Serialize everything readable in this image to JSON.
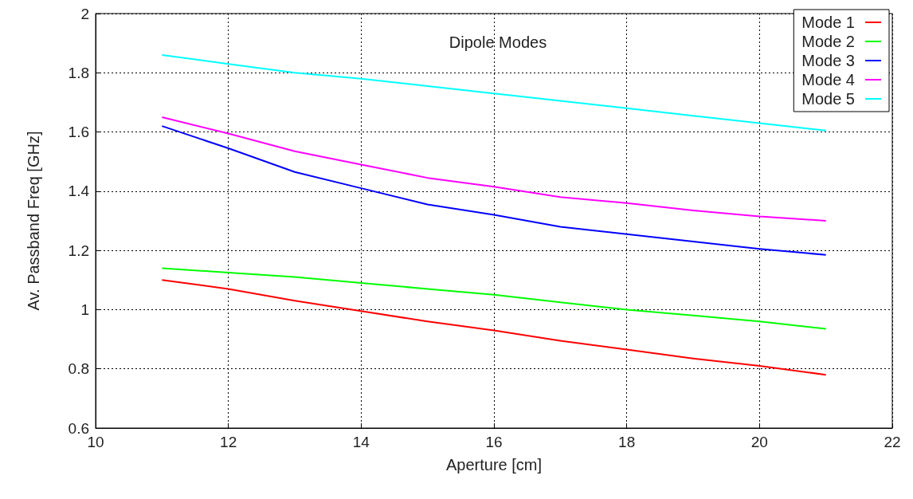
{
  "chart_data": {
    "type": "line",
    "title": "Dipole Modes",
    "xlabel": "Aperture [cm]",
    "ylabel": "Av. Passband Freq [GHz]",
    "x": [
      11,
      12,
      13,
      14,
      15,
      16,
      17,
      18,
      19,
      20,
      21
    ],
    "series": [
      {
        "name": "Mode 1",
        "color": "#ff0000",
        "values": [
          1.1,
          1.07,
          1.03,
          0.995,
          0.96,
          0.93,
          0.895,
          0.865,
          0.835,
          0.81,
          0.78
        ]
      },
      {
        "name": "Mode 2",
        "color": "#00ff00",
        "values": [
          1.14,
          1.125,
          1.11,
          1.09,
          1.07,
          1.05,
          1.025,
          1.0,
          0.98,
          0.96,
          0.935
        ]
      },
      {
        "name": "Mode 3",
        "color": "#0000ff",
        "values": [
          1.62,
          1.545,
          1.465,
          1.41,
          1.355,
          1.32,
          1.28,
          1.255,
          1.23,
          1.205,
          1.185
        ]
      },
      {
        "name": "Mode 4",
        "color": "#ff00ff",
        "values": [
          1.65,
          1.595,
          1.535,
          1.49,
          1.445,
          1.415,
          1.38,
          1.36,
          1.335,
          1.315,
          1.3
        ]
      },
      {
        "name": "Mode 5",
        "color": "#00ffff",
        "values": [
          1.86,
          1.83,
          1.8,
          1.78,
          1.755,
          1.73,
          1.705,
          1.68,
          1.655,
          1.63,
          1.605
        ]
      }
    ],
    "xlim": [
      10,
      22
    ],
    "xticks": [
      10,
      12,
      14,
      16,
      18,
      20,
      22
    ],
    "ylim": [
      0.6,
      2
    ],
    "yticks": [
      0.6,
      0.8,
      1,
      1.2,
      1.4,
      1.6,
      1.8,
      2
    ],
    "grid": true,
    "legend": "top right",
    "marker": "none",
    "line_style": "solid"
  }
}
